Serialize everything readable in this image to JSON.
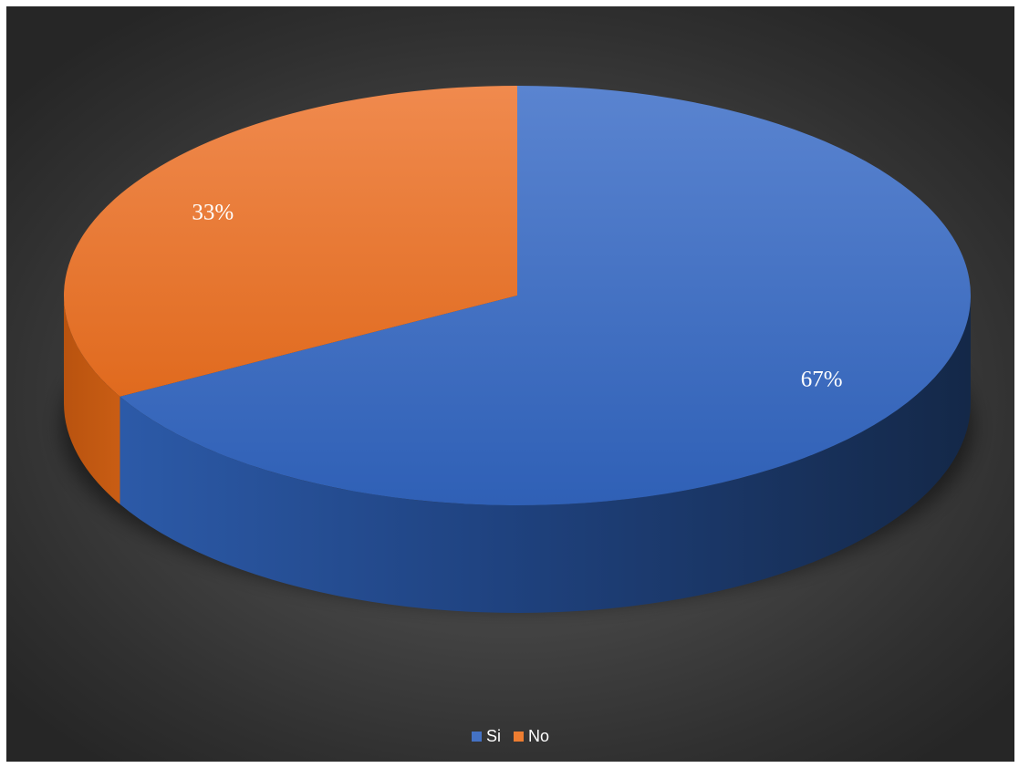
{
  "chart_data": {
    "type": "pie",
    "style": "3d",
    "categories": [
      "Si",
      "No"
    ],
    "values": [
      67,
      33
    ],
    "data_labels": [
      "67%",
      "33%"
    ],
    "colors": [
      "#4472C4",
      "#ED7D31"
    ],
    "legend_position": "bottom"
  },
  "legend": {
    "items": [
      {
        "label": "Si",
        "color": "#4472C4"
      },
      {
        "label": "No",
        "color": "#ED7D31"
      }
    ]
  }
}
